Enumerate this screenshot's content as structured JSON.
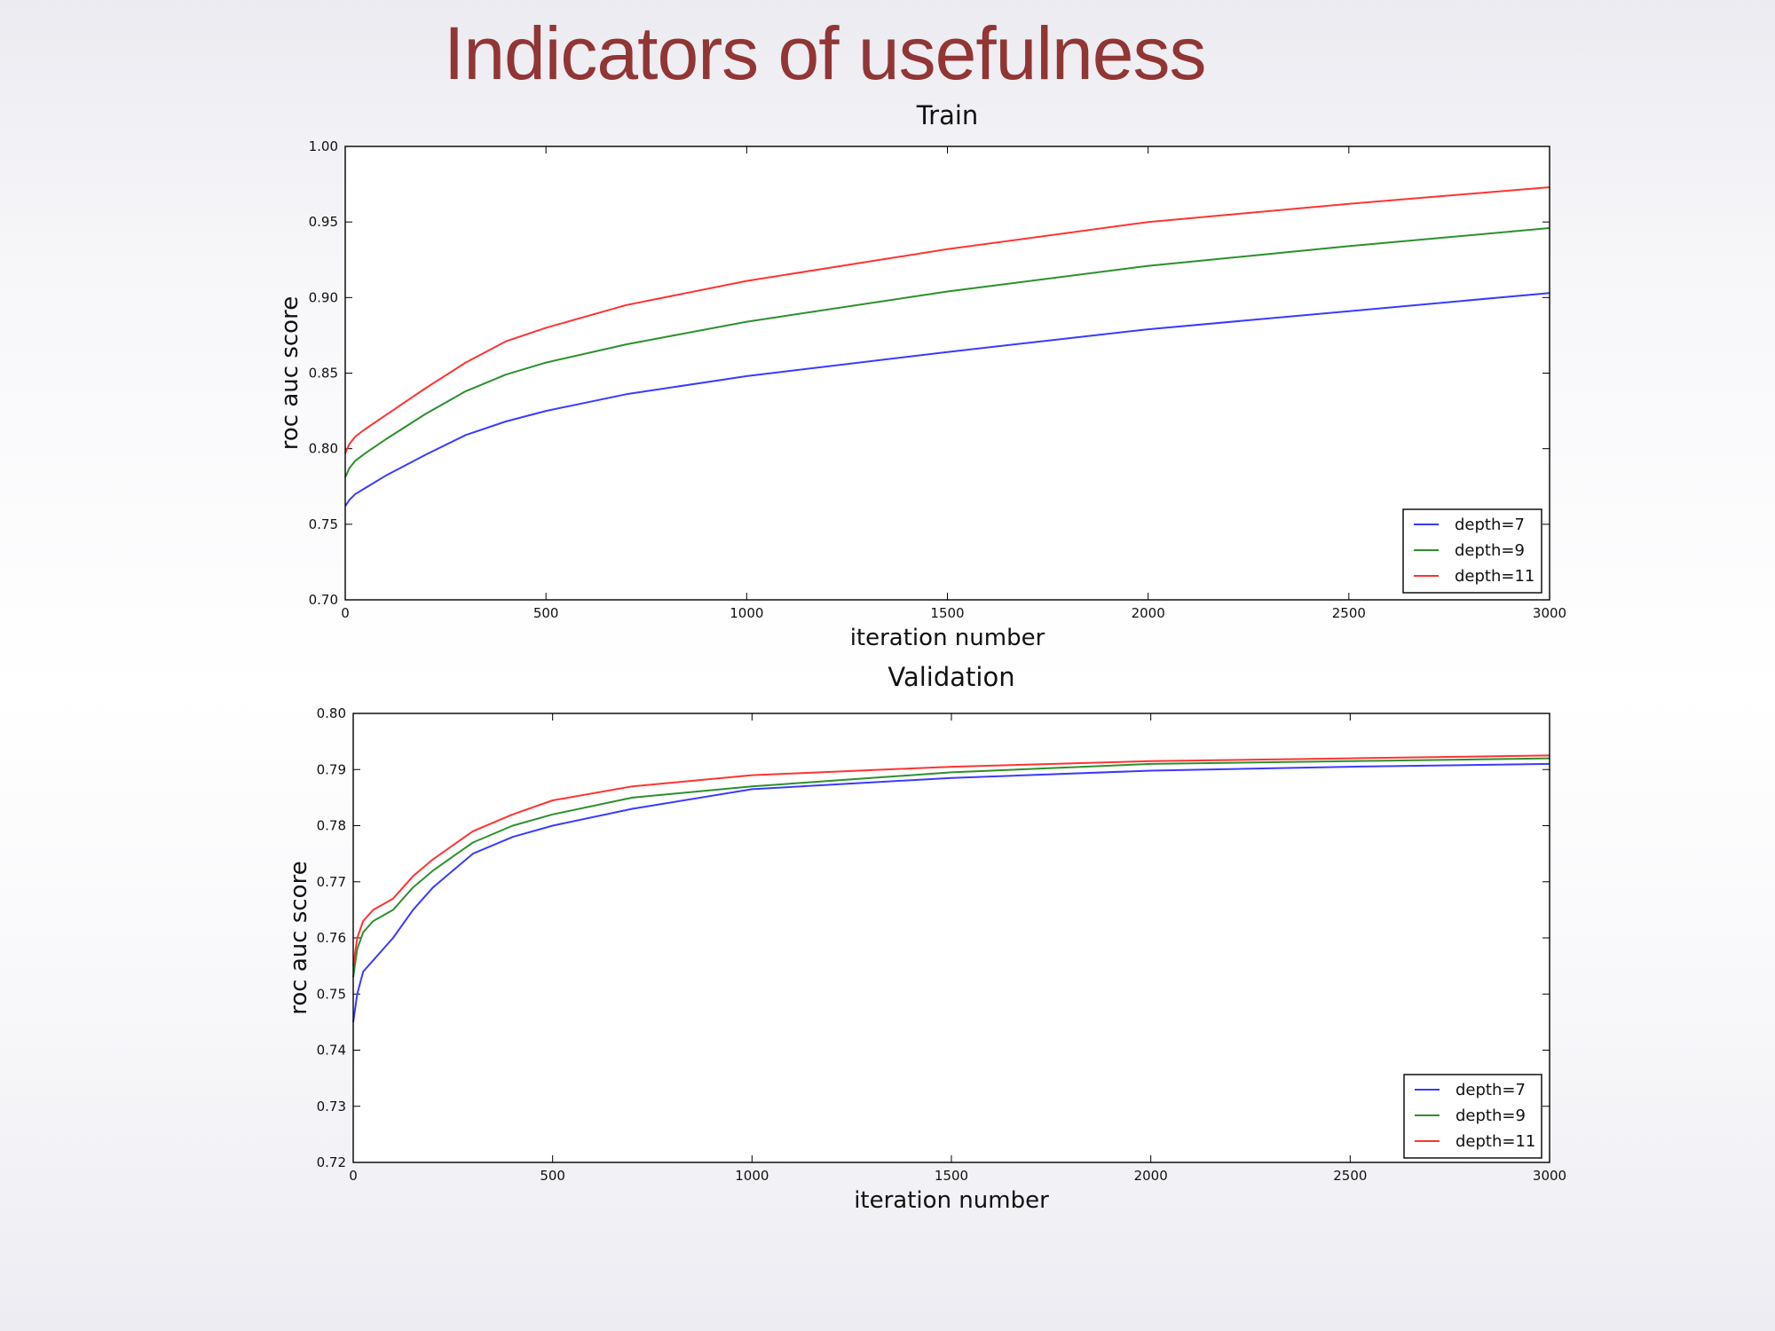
{
  "slide": {
    "title": "Indicators of usefulness"
  },
  "colors": {
    "title": "#913535",
    "depth7": "#3a3aff",
    "depth9": "#2d8f2d",
    "depth11": "#ff3333"
  },
  "chart_data": [
    {
      "type": "line",
      "title": "Train",
      "xlabel": "iteration number",
      "ylabel": "roc auc score",
      "xlim": [
        0,
        3000
      ],
      "ylim": [
        0.7,
        1.0
      ],
      "xticks": [
        0,
        500,
        1000,
        1500,
        2000,
        2500,
        3000
      ],
      "xtick_labels": [
        "0",
        "500",
        "1000",
        "1500",
        "2000",
        "2500",
        "3000"
      ],
      "yticks": [
        0.7,
        0.75,
        0.8,
        0.85,
        0.9,
        0.95,
        1.0
      ],
      "ytick_labels": [
        "0.70",
        "0.75",
        "0.80",
        "0.85",
        "0.90",
        "0.95",
        "1.00"
      ],
      "grid": false,
      "legend_position": "bottom-right",
      "series": [
        {
          "name": "depth=7",
          "color": "#3a3aff",
          "x": [
            0,
            10,
            25,
            50,
            100,
            200,
            300,
            400,
            500,
            700,
            1000,
            1500,
            2000,
            2500,
            3000
          ],
          "y": [
            0.762,
            0.766,
            0.77,
            0.774,
            0.782,
            0.796,
            0.809,
            0.818,
            0.825,
            0.836,
            0.848,
            0.864,
            0.879,
            0.891,
            0.903
          ]
        },
        {
          "name": "depth=9",
          "color": "#2d8f2d",
          "x": [
            0,
            10,
            25,
            50,
            100,
            200,
            300,
            400,
            500,
            700,
            1000,
            1500,
            2000,
            2500,
            3000
          ],
          "y": [
            0.781,
            0.787,
            0.792,
            0.797,
            0.806,
            0.823,
            0.838,
            0.849,
            0.857,
            0.869,
            0.884,
            0.904,
            0.921,
            0.934,
            0.946
          ]
        },
        {
          "name": "depth=11",
          "color": "#ff3333",
          "x": [
            0,
            10,
            25,
            50,
            100,
            200,
            300,
            400,
            500,
            700,
            1000,
            1500,
            2000,
            2500,
            3000
          ],
          "y": [
            0.797,
            0.803,
            0.808,
            0.813,
            0.822,
            0.84,
            0.857,
            0.871,
            0.88,
            0.895,
            0.911,
            0.932,
            0.95,
            0.962,
            0.973
          ]
        }
      ]
    },
    {
      "type": "line",
      "title": "Validation",
      "xlabel": "iteration number",
      "ylabel": "roc auc score",
      "xlim": [
        0,
        3000
      ],
      "ylim": [
        0.72,
        0.8
      ],
      "xticks": [
        0,
        500,
        1000,
        1500,
        2000,
        2500,
        3000
      ],
      "xtick_labels": [
        "0",
        "500",
        "1000",
        "1500",
        "2000",
        "2500",
        "3000"
      ],
      "yticks": [
        0.72,
        0.73,
        0.74,
        0.75,
        0.76,
        0.77,
        0.78,
        0.79,
        0.8
      ],
      "ytick_labels": [
        "0.72",
        "0.73",
        "0.74",
        "0.75",
        "0.76",
        "0.77",
        "0.78",
        "0.79",
        "0.80"
      ],
      "grid": false,
      "legend_position": "bottom-right",
      "series": [
        {
          "name": "depth=7",
          "color": "#3a3aff",
          "x": [
            0,
            10,
            25,
            50,
            75,
            100,
            150,
            200,
            300,
            400,
            500,
            700,
            1000,
            1500,
            2000,
            2500,
            3000
          ],
          "y": [
            0.745,
            0.75,
            0.754,
            0.756,
            0.758,
            0.76,
            0.765,
            0.769,
            0.775,
            0.778,
            0.78,
            0.783,
            0.7865,
            0.7885,
            0.7898,
            0.7905,
            0.791
          ]
        },
        {
          "name": "depth=9",
          "color": "#2d8f2d",
          "x": [
            0,
            10,
            25,
            50,
            75,
            100,
            150,
            200,
            300,
            400,
            500,
            700,
            1000,
            1500,
            2000,
            2500,
            3000
          ],
          "y": [
            0.753,
            0.758,
            0.761,
            0.763,
            0.764,
            0.765,
            0.769,
            0.772,
            0.777,
            0.78,
            0.782,
            0.785,
            0.787,
            0.7895,
            0.791,
            0.7915,
            0.792
          ]
        },
        {
          "name": "depth=11",
          "color": "#ff3333",
          "x": [
            0,
            10,
            25,
            50,
            75,
            100,
            150,
            200,
            300,
            400,
            500,
            700,
            1000,
            1500,
            2000,
            2500,
            3000
          ],
          "y": [
            0.755,
            0.76,
            0.763,
            0.765,
            0.766,
            0.767,
            0.771,
            0.774,
            0.779,
            0.782,
            0.7845,
            0.787,
            0.789,
            0.7905,
            0.7915,
            0.792,
            0.7925
          ]
        }
      ]
    }
  ]
}
